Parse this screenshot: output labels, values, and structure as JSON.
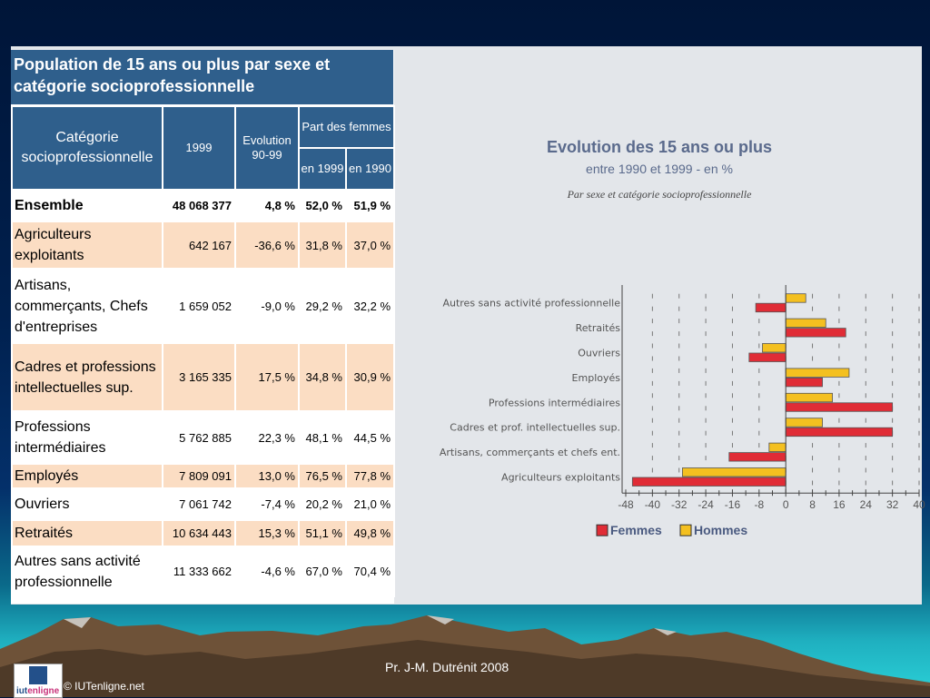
{
  "table": {
    "title": "Population de 15 ans ou plus par sexe et catégorie socioprofessionnelle",
    "headers": {
      "category": "Catégorie socioprofessionnelle",
      "year": "1999",
      "evolution": "Evolution 90-99",
      "share_women": "Part des femmes",
      "share_1999": "en 1999",
      "share_1990": "en 1990"
    },
    "rows": [
      {
        "category": "Ensemble",
        "pop_1999": "48 068 377",
        "evolution": "4,8 %",
        "share_1999": "52,0 %",
        "share_1990": "51,9 %"
      },
      {
        "category": "Agriculteurs exploitants",
        "pop_1999": "642 167",
        "evolution": "-36,6 %",
        "share_1999": "31,8 %",
        "share_1990": "37,0 %"
      },
      {
        "category": "Artisans, commerçants, Chefs d'entreprises",
        "pop_1999": "1 659 052",
        "evolution": "-9,0 %",
        "share_1999": "29,2 %",
        "share_1990": "32,2 %"
      },
      {
        "category": "Cadres et professions intellectuelles sup.",
        "pop_1999": "3 165 335",
        "evolution": "17,5 %",
        "share_1999": "34,8 %",
        "share_1990": "30,9 %"
      },
      {
        "category": "Professions intermédiaires",
        "pop_1999": "5 762 885",
        "evolution": "22,3 %",
        "share_1999": "48,1 %",
        "share_1990": "44,5 %"
      },
      {
        "category": "Employés",
        "pop_1999": "7 809 091",
        "evolution": "13,0 %",
        "share_1999": "76,5 %",
        "share_1990": "77,8 %"
      },
      {
        "category": "Ouvriers",
        "pop_1999": "7 061 742",
        "evolution": "-7,4 %",
        "share_1999": "20,2 %",
        "share_1990": "21,0 %"
      },
      {
        "category": "Retraités",
        "pop_1999": "10 634 443",
        "evolution": "15,3 %",
        "share_1999": "51,1 %",
        "share_1990": "49,8 %"
      },
      {
        "category": "Autres sans activité professionnelle",
        "pop_1999": "11 333 662",
        "evolution": "-4,6 %",
        "share_1999": "67,0 %",
        "share_1990": "70,4 %"
      }
    ]
  },
  "chart_data": {
    "type": "bar",
    "orientation": "horizontal",
    "title": "Evolution des 15 ans ou plus",
    "subtitle": "entre 1990 et 1999 - en %",
    "subtitle2": "Par sexe et catégorie socioprofessionnelle",
    "categories": [
      "Autres sans activité professionnelle",
      "Retraités",
      "Ouvriers",
      "Employés",
      "Professions intermédiaires",
      "Cadres et prof. intellectuelles sup.",
      "Artisans, commerçants et chefs ent.",
      "Agriculteurs exploitants"
    ],
    "series": [
      {
        "name": "Hommes",
        "color": "#f4c020",
        "values": [
          6,
          12,
          -7,
          19,
          14,
          11,
          -5,
          -31
        ]
      },
      {
        "name": "Femmes",
        "color": "#e02c36",
        "values": [
          -9,
          18,
          -11,
          11,
          32,
          32,
          -17,
          -46
        ]
      }
    ],
    "xlim": [
      -48,
      40
    ],
    "xticks": [
      "-48",
      "-40",
      "-32",
      "-24",
      "-16",
      "-8",
      "0",
      "8",
      "16",
      "24",
      "32",
      "40"
    ],
    "legend": [
      "Femmes",
      "Hommes"
    ],
    "legend_placement": "bottom"
  },
  "footer": {
    "credit": "Pr.  J-M. Dutrénit  2008",
    "copyright": "© IUTenligne.net",
    "logo_text_a": "iut",
    "logo_text_b": "enligne"
  }
}
